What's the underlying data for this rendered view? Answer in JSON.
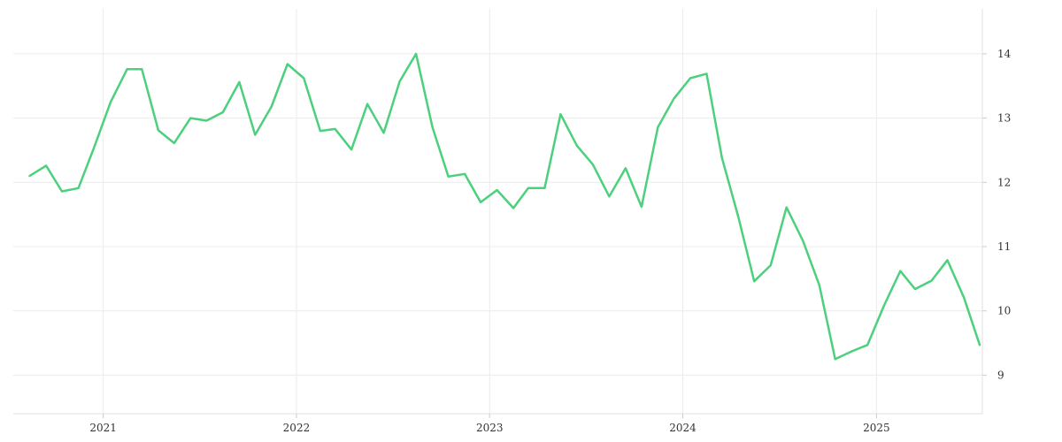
{
  "chart_data": {
    "type": "line",
    "title": "",
    "xlabel": "",
    "ylabel": "",
    "xlim": [
      "2020-07-15",
      "2025-07-20"
    ],
    "ylim": [
      8.4,
      14.7
    ],
    "grid": true,
    "legend": "none",
    "y_axis_side": "right",
    "x_ticks": [
      {
        "date": "2021-01-01",
        "label": "2021"
      },
      {
        "date": "2022-01-01",
        "label": "2022"
      },
      {
        "date": "2023-01-01",
        "label": "2023"
      },
      {
        "date": "2024-01-01",
        "label": "2024"
      },
      {
        "date": "2025-01-01",
        "label": "2025"
      }
    ],
    "y_ticks": [
      {
        "value": 9,
        "label": "9"
      },
      {
        "value": 10,
        "label": "10"
      },
      {
        "value": 11,
        "label": "11"
      },
      {
        "value": 12,
        "label": "12"
      },
      {
        "value": 13,
        "label": "13"
      },
      {
        "value": 14,
        "label": "14"
      }
    ],
    "series": [
      {
        "color": "#4cd07d",
        "x": [
          "2020-08",
          "2020-09",
          "2020-10",
          "2020-11",
          "2020-12",
          "2021-01",
          "2021-02",
          "2021-03",
          "2021-04",
          "2021-05",
          "2021-06",
          "2021-07",
          "2021-08",
          "2021-09",
          "2021-10",
          "2021-11",
          "2021-12",
          "2022-01",
          "2022-02",
          "2022-03",
          "2022-04",
          "2022-05",
          "2022-06",
          "2022-07",
          "2022-08",
          "2022-09",
          "2022-10",
          "2022-11",
          "2022-12",
          "2023-01",
          "2023-02",
          "2023-03",
          "2023-04",
          "2023-05",
          "2023-06",
          "2023-07",
          "2023-08",
          "2023-09",
          "2023-10",
          "2023-11",
          "2023-12",
          "2024-01",
          "2024-02",
          "2024-03",
          "2024-04",
          "2024-05",
          "2024-06",
          "2024-07",
          "2024-08",
          "2024-09",
          "2024-10",
          "2024-11",
          "2024-12",
          "2025-01",
          "2025-02",
          "2025-03",
          "2025-04",
          "2025-05",
          "2025-06",
          "2025-07"
        ],
        "values": [
          12.1,
          12.26,
          11.86,
          11.91,
          12.55,
          13.25,
          13.76,
          13.76,
          12.81,
          12.61,
          13.0,
          12.96,
          13.09,
          13.56,
          12.74,
          13.18,
          13.84,
          13.62,
          12.8,
          12.83,
          12.51,
          13.22,
          12.77,
          13.57,
          14.0,
          12.86,
          12.09,
          12.13,
          11.69,
          11.88,
          11.6,
          11.91,
          11.91,
          13.06,
          12.57,
          12.28,
          11.78,
          12.22,
          11.62,
          12.86,
          13.3,
          13.62,
          13.69,
          12.38,
          11.46,
          10.46,
          10.71,
          11.61,
          11.09,
          10.4,
          9.25,
          9.37,
          9.47,
          10.08,
          10.62,
          10.34,
          10.47,
          10.79,
          10.21,
          9.47
        ]
      }
    ]
  }
}
